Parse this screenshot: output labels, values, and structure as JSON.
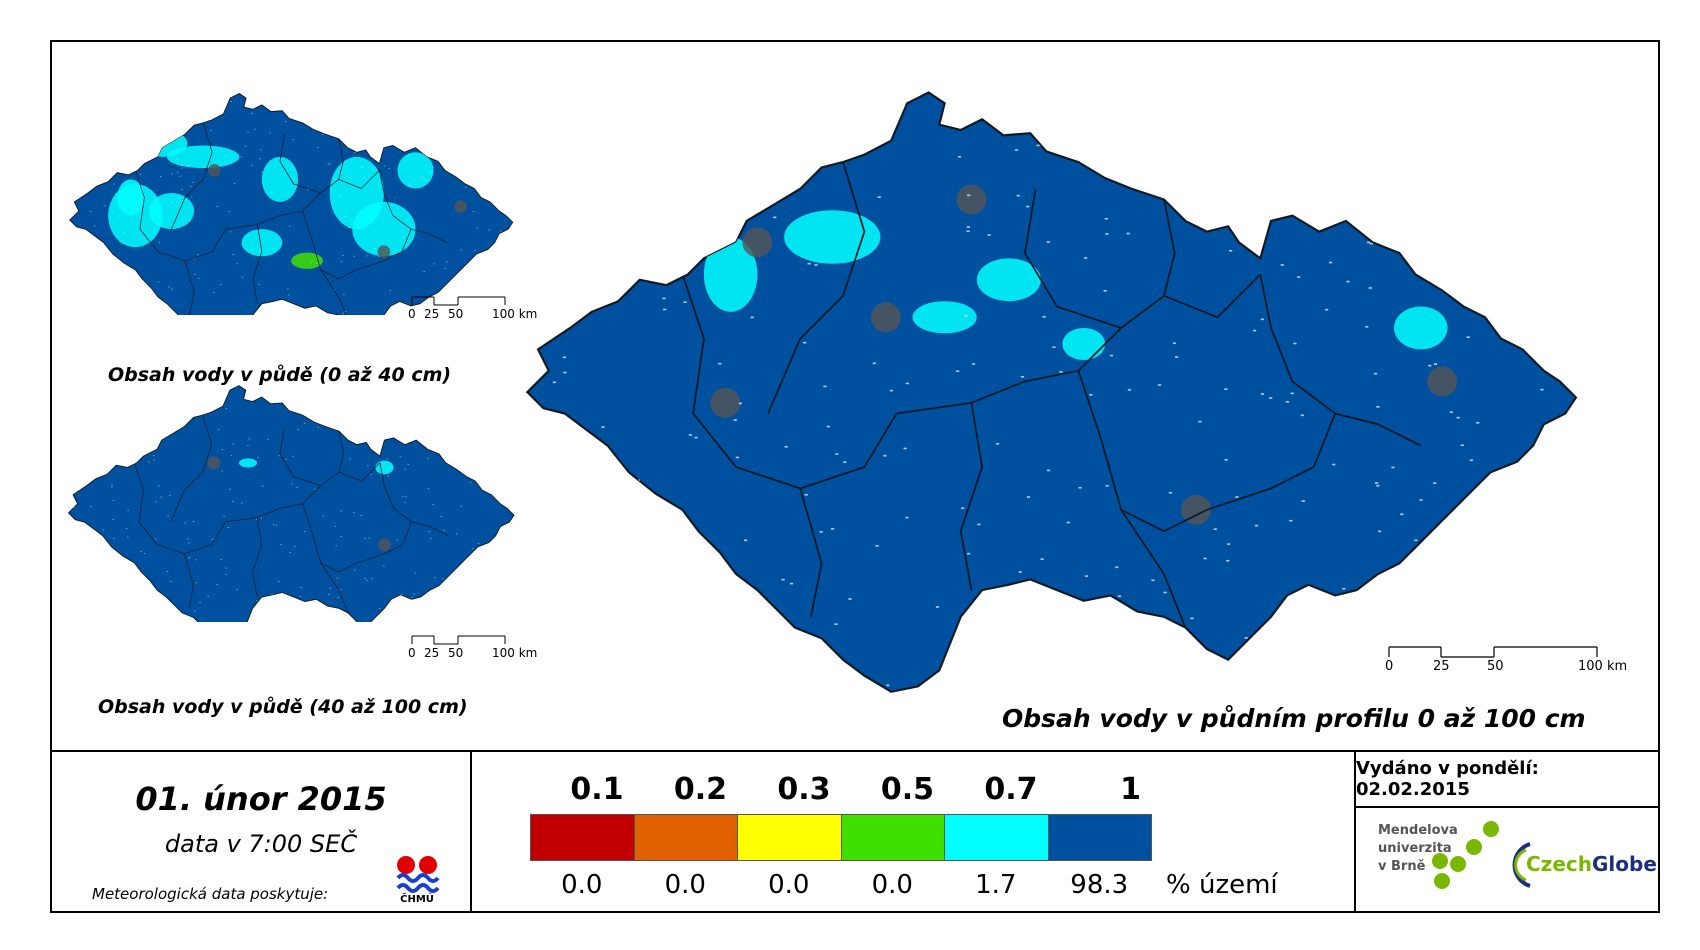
{
  "maps": {
    "small_top": {
      "caption": "Obsah vody v půdě (0 až 40 cm)"
    },
    "small_bottom": {
      "caption": "Obsah vody v půdě (40 až 100 cm)"
    },
    "main": {
      "caption": "Obsah vody v půdním profilu 0 až 100 cm"
    },
    "scale_small": {
      "t0": "0",
      "t25": "25",
      "t50": "50",
      "t100": "100 km"
    },
    "scale_main": {
      "t0": "0",
      "t25": "25",
      "t50": "50",
      "t100": "100 km"
    }
  },
  "date": {
    "title": "01. únor 2015",
    "subtitle": "data v 7:00 SEČ",
    "provider": "Meteorologická data poskytuje:",
    "provider_logo_text": "ČHMÚ"
  },
  "legend": {
    "classes": [
      {
        "upper": "0.1",
        "color": "#c00000",
        "share": "0.0"
      },
      {
        "upper": "0.2",
        "color": "#e06000",
        "share": "0.0"
      },
      {
        "upper": "0.3",
        "color": "#ffff00",
        "share": "0.0"
      },
      {
        "upper": "0.5",
        "color": "#3fe000",
        "share": "0.0"
      },
      {
        "upper": "0.7",
        "color": "#00ffff",
        "share": "1.7"
      },
      {
        "upper": "1",
        "color": "#0050a0",
        "share": "98.3"
      }
    ],
    "unit": "% území"
  },
  "issued": {
    "text": "Vydáno v pondělí: 02.02.2015"
  },
  "logos": {
    "mendel": [
      "Mendelova",
      "univerzita",
      "v Brně"
    ],
    "czechglobe_a": "Czech",
    "czechglobe_b": "Globe"
  },
  "colors": {
    "map_fill": "#0050a0",
    "wet_patch": "#00ffff",
    "medium_patch": "#3fe000",
    "urban": "#555555",
    "border": "#101820"
  }
}
